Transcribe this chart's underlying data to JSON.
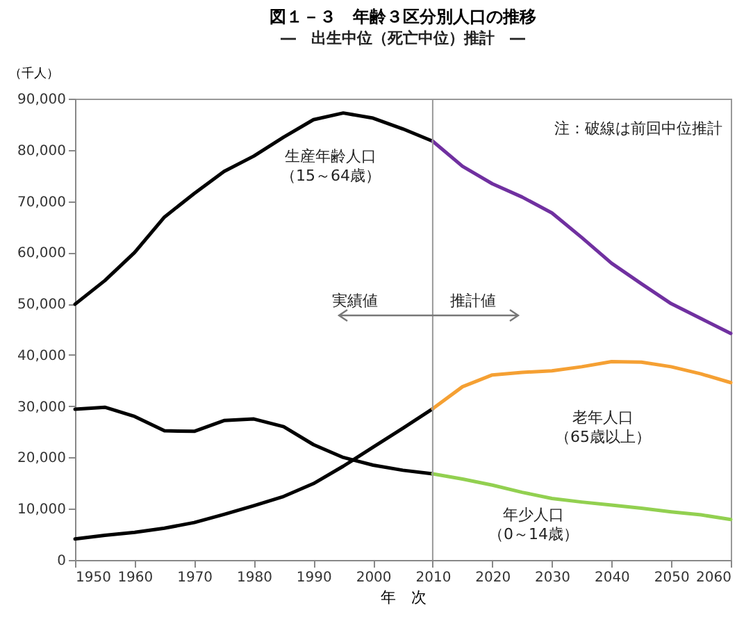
{
  "chart_data": {
    "type": "line",
    "title": "図１－３　年齢３区分別人口の推移",
    "subtitle": "―　出生中位（死亡中位）推計　―",
    "xlabel": "年　次",
    "ylabel": "（千人）",
    "x": [
      1950,
      1955,
      1960,
      1965,
      1970,
      1975,
      1980,
      1985,
      1990,
      1995,
      2000,
      2005,
      2010
    ],
    "series": [
      {
        "color": "#000000",
        "values": [
          49900,
          54500,
          60000,
          66900,
          71500,
          75800,
          78800,
          82500,
          85900,
          87200,
          86200,
          84100,
          81700
        ]
      },
      {
        "color": "#000000",
        "values": [
          29400,
          29800,
          28000,
          25200,
          25100,
          27200,
          27500,
          26000,
          22500,
          20000,
          18500,
          17500,
          16800
        ]
      },
      {
        "color": "#000000",
        "values": [
          4100,
          4800,
          5400,
          6200,
          7300,
          8900,
          10600,
          12400,
          14900,
          18300,
          22000,
          25700,
          29500
        ]
      },
      {
        "color": "#7030a0",
        "x": [
          2010,
          2015,
          2020,
          2025,
          2030,
          2035,
          2040,
          2045,
          2050,
          2055,
          2060
        ],
        "values": [
          81700,
          76800,
          73400,
          70800,
          67700,
          62900,
          57900,
          53900,
          50000,
          47100,
          44200
        ]
      },
      {
        "color": "#f5a033",
        "x": [
          2010,
          2015,
          2020,
          2025,
          2030,
          2035,
          2040,
          2045,
          2050,
          2055,
          2060
        ],
        "values": [
          29500,
          33800,
          36100,
          36600,
          36900,
          37700,
          38700,
          38600,
          37700,
          36300,
          34600
        ]
      },
      {
        "color": "#92d050",
        "x": [
          2010,
          2015,
          2020,
          2025,
          2030,
          2035,
          2040,
          2045,
          2050,
          2055,
          2060
        ],
        "values": [
          16800,
          15800,
          14600,
          13200,
          12000,
          11300,
          10700,
          10100,
          9400,
          8800,
          7900
        ]
      }
    ],
    "xlim": [
      1950,
      2060
    ],
    "xticks": [
      1950,
      1960,
      1970,
      1980,
      1990,
      2000,
      2010,
      2020,
      2030,
      2040,
      2050,
      2060
    ],
    "ylim": [
      0,
      90000
    ],
    "yticks": [
      0,
      {
        "value": 10000,
        "label": "10,000"
      },
      {
        "value": 20000,
        "label": "20,000"
      },
      {
        "value": 30000,
        "label": "30,000"
      },
      {
        "value": 40000,
        "label": "40,000"
      },
      {
        "value": 50000,
        "label": "50,000"
      },
      {
        "value": 60000,
        "label": "60,000"
      },
      {
        "value": 70000,
        "label": "70,000"
      },
      {
        "value": 80000,
        "label": "80,000"
      },
      {
        "value": 90000,
        "label": "90,000"
      }
    ],
    "ref_lines": [
      {
        "axis": "x",
        "value": 2010,
        "color": "#999999"
      }
    ],
    "annotations": [
      "注：破線は前回中位推計",
      "実績値",
      "推計値",
      "生産年齢人口（15～64歳）",
      "老年人口（65歳以上）",
      "年少人口（0～14歳）"
    ],
    "grid": false,
    "legend": false,
    "marker": "none",
    "line_style": "solid"
  }
}
